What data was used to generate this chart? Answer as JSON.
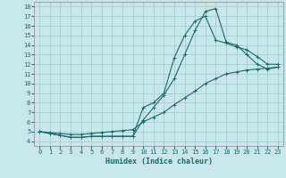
{
  "title": "",
  "xlabel": "Humidex (Indice chaleur)",
  "ylabel": "",
  "bg_color": "#c8e8e8",
  "line_color": "#1a6b6b",
  "xlim": [
    -0.5,
    23.5
  ],
  "ylim": [
    3.5,
    18.5
  ],
  "yticks": [
    4,
    5,
    6,
    7,
    8,
    9,
    10,
    11,
    12,
    13,
    14,
    15,
    16,
    17,
    18
  ],
  "xticks": [
    0,
    1,
    2,
    3,
    4,
    5,
    6,
    7,
    8,
    9,
    10,
    11,
    12,
    13,
    14,
    15,
    16,
    17,
    18,
    19,
    20,
    21,
    22,
    23
  ],
  "line1_x": [
    0,
    1,
    2,
    3,
    4,
    5,
    6,
    7,
    8,
    9,
    10,
    11,
    12,
    13,
    14,
    15,
    16,
    17,
    18,
    19,
    20,
    21,
    22,
    23
  ],
  "line1_y": [
    5.0,
    4.8,
    4.6,
    4.4,
    4.4,
    4.5,
    4.5,
    4.5,
    4.5,
    4.5,
    6.2,
    7.5,
    8.8,
    10.5,
    13.0,
    15.5,
    17.5,
    17.8,
    14.3,
    14.0,
    13.0,
    12.0,
    11.5,
    11.7
  ],
  "line2_x": [
    0,
    1,
    2,
    3,
    4,
    5,
    6,
    7,
    8,
    9,
    10,
    11,
    12,
    13,
    14,
    15,
    16,
    17,
    18,
    19,
    20,
    21,
    22,
    23
  ],
  "line2_y": [
    5.0,
    4.8,
    4.6,
    4.4,
    4.4,
    4.5,
    4.5,
    4.5,
    4.5,
    4.5,
    7.5,
    8.0,
    9.0,
    12.7,
    15.0,
    16.5,
    17.0,
    14.5,
    14.2,
    13.8,
    13.5,
    12.8,
    12.0,
    12.0
  ],
  "line3_x": [
    0,
    1,
    2,
    3,
    4,
    5,
    6,
    7,
    8,
    9,
    10,
    11,
    12,
    13,
    14,
    15,
    16,
    17,
    18,
    19,
    20,
    21,
    22,
    23
  ],
  "line3_y": [
    5.0,
    4.9,
    4.8,
    4.7,
    4.7,
    4.8,
    4.9,
    5.0,
    5.1,
    5.2,
    6.0,
    6.5,
    7.0,
    7.8,
    8.5,
    9.2,
    10.0,
    10.5,
    11.0,
    11.2,
    11.4,
    11.5,
    11.6,
    11.7
  ],
  "marker_size": 2,
  "grid_color": "#a0c8c8",
  "font_color": "#1a6b6b",
  "spine_color": "#888888"
}
